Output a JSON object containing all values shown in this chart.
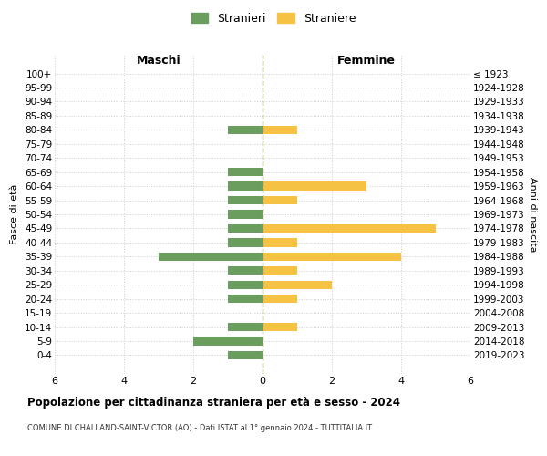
{
  "age_groups": [
    "100+",
    "95-99",
    "90-94",
    "85-89",
    "80-84",
    "75-79",
    "70-74",
    "65-69",
    "60-64",
    "55-59",
    "50-54",
    "45-49",
    "40-44",
    "35-39",
    "30-34",
    "25-29",
    "20-24",
    "15-19",
    "10-14",
    "5-9",
    "0-4"
  ],
  "birth_years": [
    "≤ 1923",
    "1924-1928",
    "1929-1933",
    "1934-1938",
    "1939-1943",
    "1944-1948",
    "1949-1953",
    "1954-1958",
    "1959-1963",
    "1964-1968",
    "1969-1973",
    "1974-1978",
    "1979-1983",
    "1984-1988",
    "1989-1993",
    "1994-1998",
    "1999-2003",
    "2004-2008",
    "2009-2013",
    "2014-2018",
    "2019-2023"
  ],
  "maschi": [
    0,
    0,
    0,
    0,
    1,
    0,
    0,
    1,
    1,
    1,
    1,
    1,
    1,
    3,
    1,
    1,
    1,
    0,
    1,
    2,
    1
  ],
  "femmine": [
    0,
    0,
    0,
    0,
    1,
    0,
    0,
    0,
    3,
    1,
    0,
    5,
    1,
    4,
    1,
    2,
    1,
    0,
    1,
    0,
    0
  ],
  "color_maschi": "#6B9E5E",
  "color_femmine": "#F5C243",
  "title": "Popolazione per cittadinanza straniera per età e sesso - 2024",
  "subtitle": "COMUNE DI CHALLAND-SAINT-VICTOR (AO) - Dati ISTAT al 1° gennaio 2024 - TUTTITALIA.IT",
  "xlabel_left": "Maschi",
  "xlabel_right": "Femmine",
  "ylabel_left": "Fasce di età",
  "ylabel_right": "Anni di nascita",
  "legend_maschi": "Stranieri",
  "legend_femmine": "Straniere",
  "xlim": 6,
  "background_color": "#ffffff",
  "grid_color": "#cccccc"
}
